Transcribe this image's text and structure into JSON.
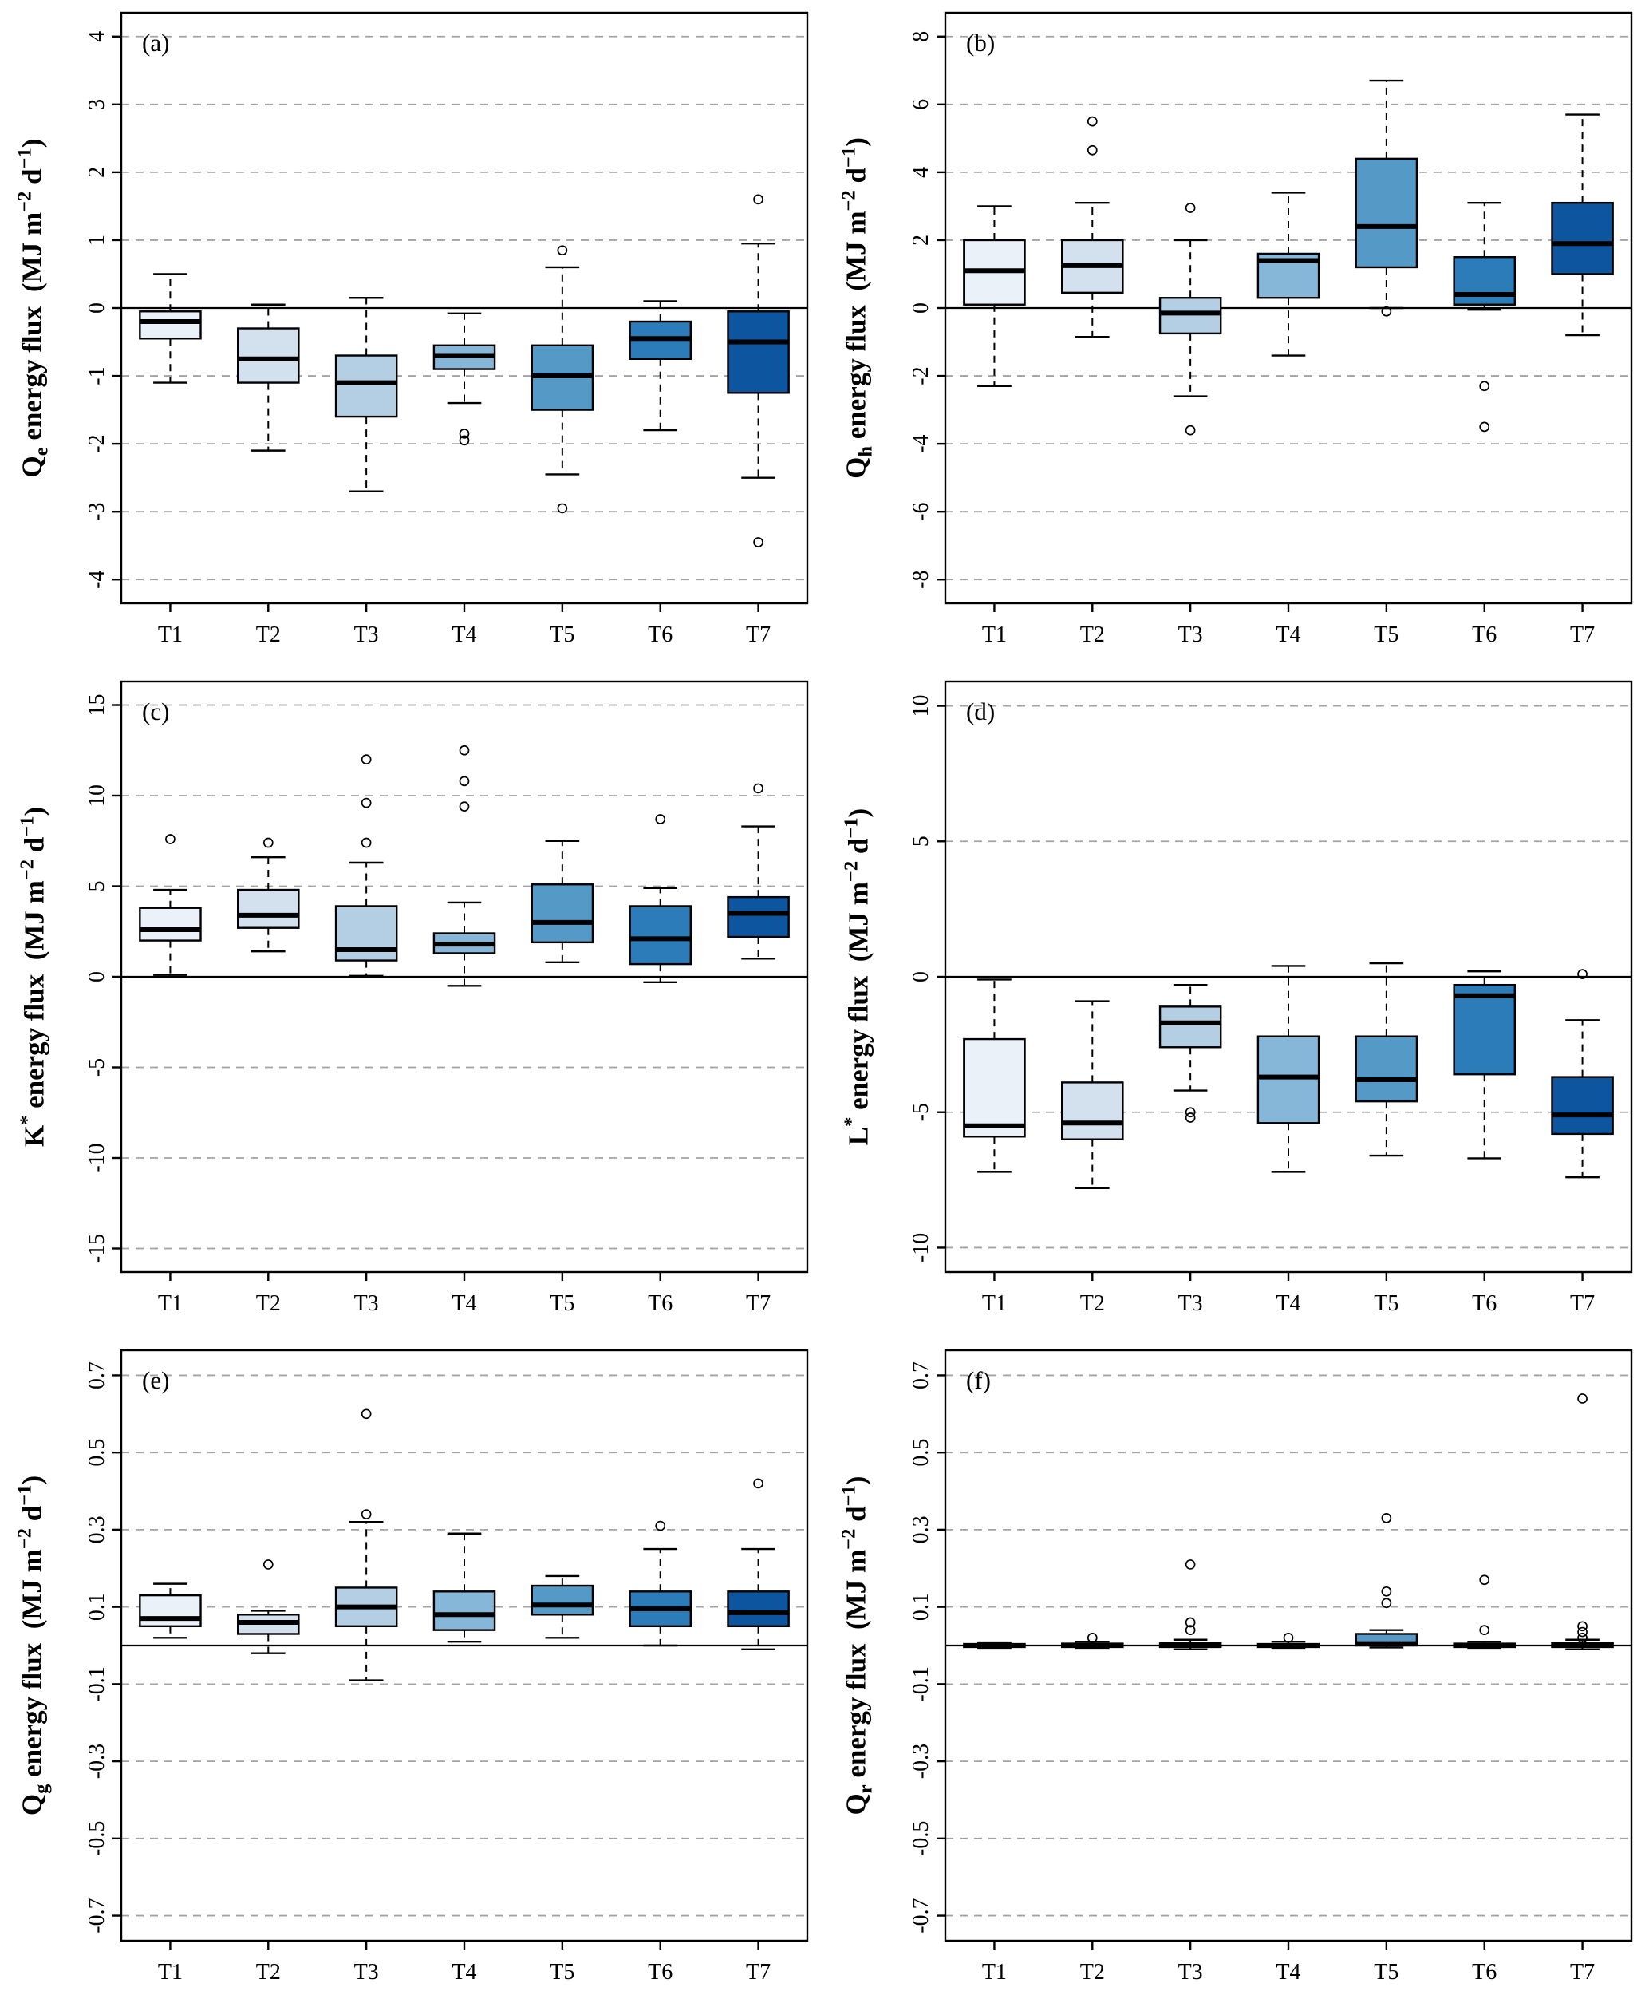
{
  "figure": {
    "background": "#ffffff",
    "grid_color": "#a3a3a3",
    "categories": [
      "T1",
      "T2",
      "T3",
      "T4",
      "T5",
      "T6",
      "T7"
    ],
    "box_colors": [
      "#eaf1f8",
      "#d3e1ef",
      "#b4cfe4",
      "#86b6d8",
      "#5599c7",
      "#2d7cba",
      "#0d559e"
    ]
  },
  "chart_data": [
    {
      "type": "boxplot",
      "panel_label": "(a)",
      "ylabel_segments": [
        {
          "t": "Q"
        },
        {
          "t": "e",
          "s": "sub"
        },
        {
          "t": " energy flux  (MJ m"
        },
        {
          "t": "−2",
          "s": "sup"
        },
        {
          "t": " d"
        },
        {
          "t": "−1",
          "s": "sup"
        },
        {
          "t": ")"
        }
      ],
      "ylim": [
        -4.35,
        4.35
      ],
      "yticks": [
        -4,
        -3,
        -2,
        -1,
        0,
        1,
        2,
        3,
        4
      ],
      "ytick_labels": [
        "-4",
        "-3",
        "-2",
        "-1",
        "0",
        "1",
        "2",
        "3",
        "4"
      ],
      "zero_line": true,
      "boxes": [
        {
          "category": "T1",
          "whisker_low": -1.1,
          "q1": -0.45,
          "median": -0.2,
          "q3": -0.05,
          "whisker_high": 0.5,
          "outliers": []
        },
        {
          "category": "T2",
          "whisker_low": -2.1,
          "q1": -1.1,
          "median": -0.75,
          "q3": -0.3,
          "whisker_high": 0.05,
          "outliers": []
        },
        {
          "category": "T3",
          "whisker_low": -2.7,
          "q1": -1.6,
          "median": -1.1,
          "q3": -0.7,
          "whisker_high": 0.15,
          "outliers": []
        },
        {
          "category": "T4",
          "whisker_low": -1.4,
          "q1": -0.9,
          "median": -0.7,
          "q3": -0.55,
          "whisker_high": -0.08,
          "outliers": [
            -1.85,
            -1.95
          ]
        },
        {
          "category": "T5",
          "whisker_low": -2.45,
          "q1": -1.5,
          "median": -1.0,
          "q3": -0.55,
          "whisker_high": 0.6,
          "outliers": [
            0.85,
            -2.95
          ]
        },
        {
          "category": "T6",
          "whisker_low": -1.8,
          "q1": -0.75,
          "median": -0.45,
          "q3": -0.2,
          "whisker_high": 0.1,
          "outliers": []
        },
        {
          "category": "T7",
          "whisker_low": -2.5,
          "q1": -1.25,
          "median": -0.5,
          "q3": -0.05,
          "whisker_high": 0.95,
          "outliers": [
            1.6,
            -3.45
          ]
        }
      ]
    },
    {
      "type": "boxplot",
      "panel_label": "(b)",
      "ylabel_segments": [
        {
          "t": "Q"
        },
        {
          "t": "h",
          "s": "sub"
        },
        {
          "t": " energy flux  (MJ m"
        },
        {
          "t": "−2",
          "s": "sup"
        },
        {
          "t": " d"
        },
        {
          "t": "−1",
          "s": "sup"
        },
        {
          "t": ")"
        }
      ],
      "ylim": [
        -8.7,
        8.7
      ],
      "yticks": [
        -8,
        -6,
        -4,
        -2,
        0,
        2,
        4,
        6,
        8
      ],
      "ytick_labels": [
        "-8",
        "-6",
        "-4",
        "-2",
        "0",
        "2",
        "4",
        "6",
        "8"
      ],
      "zero_line": true,
      "boxes": [
        {
          "category": "T1",
          "whisker_low": -2.3,
          "q1": 0.1,
          "median": 1.1,
          "q3": 2.0,
          "whisker_high": 3.0,
          "outliers": []
        },
        {
          "category": "T2",
          "whisker_low": -0.85,
          "q1": 0.45,
          "median": 1.25,
          "q3": 2.0,
          "whisker_high": 3.1,
          "outliers": [
            5.5,
            4.65
          ]
        },
        {
          "category": "T3",
          "whisker_low": -2.6,
          "q1": -0.75,
          "median": -0.15,
          "q3": 0.3,
          "whisker_high": 2.0,
          "outliers": [
            2.95,
            -3.6
          ]
        },
        {
          "category": "T4",
          "whisker_low": -1.4,
          "q1": 0.3,
          "median": 1.4,
          "q3": 1.6,
          "whisker_high": 3.4,
          "outliers": []
        },
        {
          "category": "T5",
          "whisker_low": 0.0,
          "q1": 1.2,
          "median": 2.4,
          "q3": 4.4,
          "whisker_high": 6.7,
          "outliers": [
            -0.1
          ]
        },
        {
          "category": "T6",
          "whisker_low": -0.05,
          "q1": 0.1,
          "median": 0.4,
          "q3": 1.5,
          "whisker_high": 3.1,
          "outliers": [
            -2.3,
            -3.5
          ]
        },
        {
          "category": "T7",
          "whisker_low": -0.8,
          "q1": 1.0,
          "median": 1.9,
          "q3": 3.1,
          "whisker_high": 5.7,
          "outliers": []
        }
      ]
    },
    {
      "type": "boxplot",
      "panel_label": "(c)",
      "ylabel_segments": [
        {
          "t": "K"
        },
        {
          "t": "*",
          "s": "sup"
        },
        {
          "t": " energy flux  (MJ m"
        },
        {
          "t": "−2",
          "s": "sup"
        },
        {
          "t": " d"
        },
        {
          "t": "−1",
          "s": "sup"
        },
        {
          "t": ")"
        }
      ],
      "ylim": [
        -16.3,
        16.3
      ],
      "yticks": [
        -15,
        -10,
        -5,
        0,
        5,
        10,
        15
      ],
      "ytick_labels": [
        "-15",
        "-10",
        "-5",
        "0",
        "5",
        "10",
        "15"
      ],
      "zero_line": true,
      "boxes": [
        {
          "category": "T1",
          "whisker_low": 0.1,
          "q1": 2.0,
          "median": 2.6,
          "q3": 3.8,
          "whisker_high": 4.8,
          "outliers": [
            7.6
          ]
        },
        {
          "category": "T2",
          "whisker_low": 1.4,
          "q1": 2.7,
          "median": 3.4,
          "q3": 4.8,
          "whisker_high": 6.6,
          "outliers": [
            7.4
          ]
        },
        {
          "category": "T3",
          "whisker_low": 0.05,
          "q1": 0.9,
          "median": 1.5,
          "q3": 3.9,
          "whisker_high": 6.3,
          "outliers": [
            12.0,
            9.6,
            7.4
          ]
        },
        {
          "category": "T4",
          "whisker_low": -0.5,
          "q1": 1.3,
          "median": 1.8,
          "q3": 2.4,
          "whisker_high": 4.1,
          "outliers": [
            12.5,
            10.8,
            9.4
          ]
        },
        {
          "category": "T5",
          "whisker_low": 0.8,
          "q1": 1.9,
          "median": 3.0,
          "q3": 5.1,
          "whisker_high": 7.5,
          "outliers": []
        },
        {
          "category": "T6",
          "whisker_low": -0.3,
          "q1": 0.7,
          "median": 2.1,
          "q3": 3.9,
          "whisker_high": 4.9,
          "outliers": [
            8.7
          ]
        },
        {
          "category": "T7",
          "whisker_low": 1.0,
          "q1": 2.2,
          "median": 3.5,
          "q3": 4.4,
          "whisker_high": 8.3,
          "outliers": [
            10.4
          ]
        }
      ]
    },
    {
      "type": "boxplot",
      "panel_label": "(d)",
      "ylabel_segments": [
        {
          "t": "L"
        },
        {
          "t": "*",
          "s": "sup"
        },
        {
          "t": " energy flux  (MJ m"
        },
        {
          "t": "−2",
          "s": "sup"
        },
        {
          "t": " d"
        },
        {
          "t": "−1",
          "s": "sup"
        },
        {
          "t": ")"
        }
      ],
      "ylim": [
        -10.9,
        10.9
      ],
      "yticks": [
        -10,
        -5,
        0,
        5,
        10
      ],
      "ytick_labels": [
        "-10",
        "-5",
        "0",
        "5",
        "10"
      ],
      "zero_line": true,
      "boxes": [
        {
          "category": "T1",
          "whisker_low": -7.2,
          "q1": -5.9,
          "median": -5.5,
          "q3": -2.3,
          "whisker_high": -0.1,
          "outliers": []
        },
        {
          "category": "T2",
          "whisker_low": -7.8,
          "q1": -6.0,
          "median": -5.4,
          "q3": -3.9,
          "whisker_high": -0.9,
          "outliers": []
        },
        {
          "category": "T3",
          "whisker_low": -4.2,
          "q1": -2.6,
          "median": -1.7,
          "q3": -1.1,
          "whisker_high": -0.3,
          "outliers": [
            -5.0,
            -5.2
          ]
        },
        {
          "category": "T4",
          "whisker_low": -7.2,
          "q1": -5.4,
          "median": -3.7,
          "q3": -2.2,
          "whisker_high": 0.4,
          "outliers": []
        },
        {
          "category": "T5",
          "whisker_low": -6.6,
          "q1": -4.6,
          "median": -3.8,
          "q3": -2.2,
          "whisker_high": 0.5,
          "outliers": []
        },
        {
          "category": "T6",
          "whisker_low": -6.7,
          "q1": -3.6,
          "median": -0.7,
          "q3": -0.3,
          "whisker_high": 0.2,
          "outliers": []
        },
        {
          "category": "T7",
          "whisker_low": -7.4,
          "q1": -5.8,
          "median": -5.1,
          "q3": -3.7,
          "whisker_high": -1.6,
          "outliers": [
            0.1
          ]
        }
      ]
    },
    {
      "type": "boxplot",
      "panel_label": "(e)",
      "ylabel_segments": [
        {
          "t": "Q"
        },
        {
          "t": "g",
          "s": "sub"
        },
        {
          "t": " energy flux  (MJ m"
        },
        {
          "t": "−2",
          "s": "sup"
        },
        {
          "t": " d"
        },
        {
          "t": "−1",
          "s": "sup"
        },
        {
          "t": ")"
        }
      ],
      "ylim": [
        -0.765,
        0.765
      ],
      "yticks": [
        -0.7,
        -0.5,
        -0.3,
        -0.1,
        0.1,
        0.3,
        0.5,
        0.7
      ],
      "ytick_labels": [
        "-0.7",
        "-0.5",
        "-0.3",
        "-0.1",
        "0.1",
        "0.3",
        "0.5",
        "0.7"
      ],
      "zero_line": true,
      "boxes": [
        {
          "category": "T1",
          "whisker_low": 0.02,
          "q1": 0.05,
          "median": 0.07,
          "q3": 0.13,
          "whisker_high": 0.16,
          "outliers": []
        },
        {
          "category": "T2",
          "whisker_low": -0.02,
          "q1": 0.03,
          "median": 0.06,
          "q3": 0.08,
          "whisker_high": 0.09,
          "outliers": [
            0.21
          ]
        },
        {
          "category": "T3",
          "whisker_low": -0.09,
          "q1": 0.05,
          "median": 0.1,
          "q3": 0.15,
          "whisker_high": 0.32,
          "outliers": [
            0.6,
            0.34
          ]
        },
        {
          "category": "T4",
          "whisker_low": 0.01,
          "q1": 0.04,
          "median": 0.08,
          "q3": 0.14,
          "whisker_high": 0.29,
          "outliers": []
        },
        {
          "category": "T5",
          "whisker_low": 0.02,
          "q1": 0.08,
          "median": 0.105,
          "q3": 0.155,
          "whisker_high": 0.18,
          "outliers": []
        },
        {
          "category": "T6",
          "whisker_low": 0.0,
          "q1": 0.05,
          "median": 0.095,
          "q3": 0.14,
          "whisker_high": 0.25,
          "outliers": [
            0.31
          ]
        },
        {
          "category": "T7",
          "whisker_low": -0.01,
          "q1": 0.05,
          "median": 0.085,
          "q3": 0.14,
          "whisker_high": 0.25,
          "outliers": [
            0.42
          ]
        }
      ]
    },
    {
      "type": "boxplot",
      "panel_label": "(f)",
      "ylabel_segments": [
        {
          "t": "Q"
        },
        {
          "t": "r",
          "s": "sub"
        },
        {
          "t": " energy flux  (MJ m"
        },
        {
          "t": "−2",
          "s": "sup"
        },
        {
          "t": " d"
        },
        {
          "t": "−1",
          "s": "sup"
        },
        {
          "t": ")"
        }
      ],
      "ylim": [
        -0.765,
        0.765
      ],
      "yticks": [
        -0.7,
        -0.5,
        -0.3,
        -0.1,
        0.1,
        0.3,
        0.5,
        0.7
      ],
      "ytick_labels": [
        "-0.7",
        "-0.5",
        "-0.3",
        "-0.1",
        "0.1",
        "0.3",
        "0.5",
        "0.7"
      ],
      "zero_line": true,
      "boxes": [
        {
          "category": "T1",
          "whisker_low": -0.008,
          "q1": -0.004,
          "median": 0.0,
          "q3": 0.004,
          "whisker_high": 0.008,
          "outliers": []
        },
        {
          "category": "T2",
          "whisker_low": -0.008,
          "q1": -0.004,
          "median": 0.0,
          "q3": 0.005,
          "whisker_high": 0.01,
          "outliers": [
            0.02
          ]
        },
        {
          "category": "T3",
          "whisker_low": -0.01,
          "q1": -0.004,
          "median": 0.0,
          "q3": 0.006,
          "whisker_high": 0.015,
          "outliers": [
            0.21,
            0.06,
            0.04
          ]
        },
        {
          "category": "T4",
          "whisker_low": -0.008,
          "q1": -0.004,
          "median": 0.0,
          "q3": 0.004,
          "whisker_high": 0.01,
          "outliers": [
            0.02
          ]
        },
        {
          "category": "T5",
          "whisker_low": -0.005,
          "q1": 0.0,
          "median": 0.005,
          "q3": 0.03,
          "whisker_high": 0.04,
          "outliers": [
            0.33,
            0.14,
            0.11
          ]
        },
        {
          "category": "T6",
          "whisker_low": -0.008,
          "q1": -0.004,
          "median": 0.0,
          "q3": 0.005,
          "whisker_high": 0.01,
          "outliers": [
            0.17,
            0.04
          ]
        },
        {
          "category": "T7",
          "whisker_low": -0.01,
          "q1": -0.004,
          "median": 0.0,
          "q3": 0.006,
          "whisker_high": 0.015,
          "outliers": [
            0.64,
            0.05,
            0.035,
            0.02
          ]
        }
      ]
    }
  ]
}
